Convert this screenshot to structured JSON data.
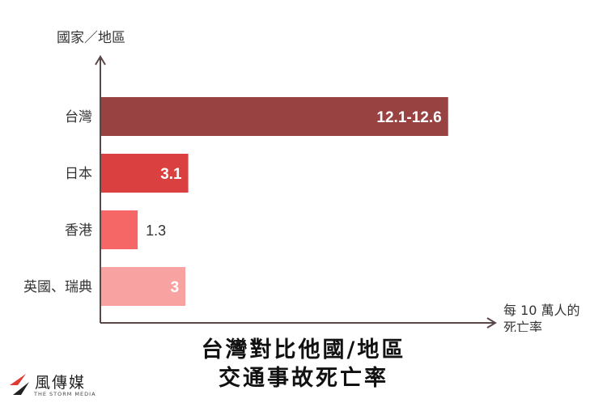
{
  "chart_data": {
    "type": "bar",
    "orientation": "horizontal",
    "title_lines": [
      "台灣對比他國/地區",
      "交通事故死亡率"
    ],
    "ylabel": "國家／地區",
    "xlabel_lines": [
      "每 10 萬人的",
      "死亡率"
    ],
    "categories": [
      "台灣",
      "日本",
      "香港",
      "英國、瑞典"
    ],
    "values": [
      12.35,
      3.1,
      1.3,
      3
    ],
    "value_labels": [
      "12.1-12.6",
      "3.1",
      "1.3",
      "3"
    ],
    "colors": [
      "#984342",
      "#d9403f",
      "#f56767",
      "#f8a3a1"
    ],
    "xlim": [
      0,
      14
    ],
    "grid": false
  },
  "logo": {
    "name": "風傳媒",
    "tagline": "THE STORM MEDIA"
  }
}
